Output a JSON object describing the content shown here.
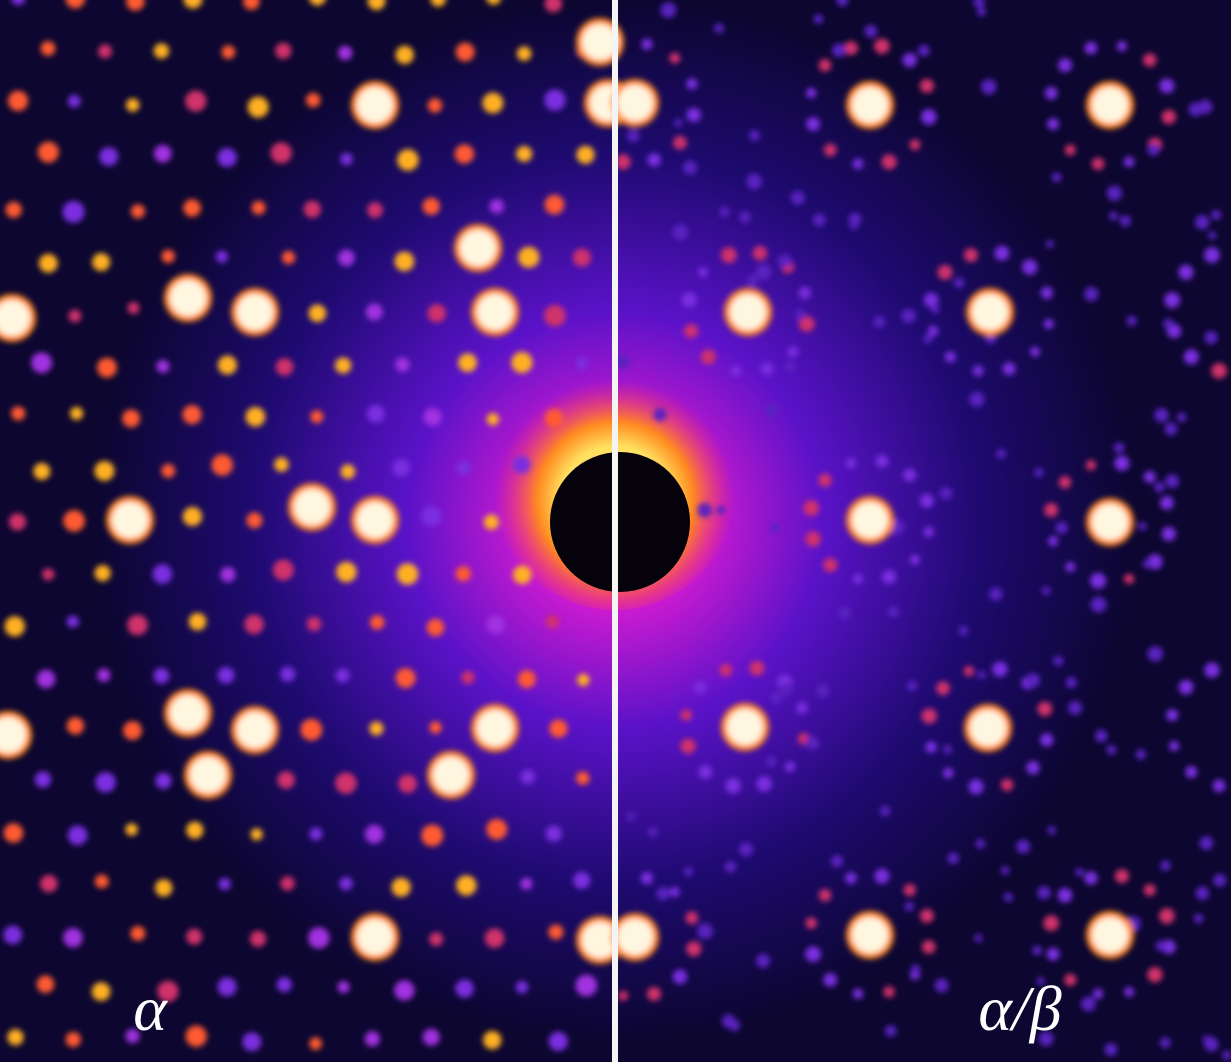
{
  "labels": {
    "left": "α",
    "right": "α/β"
  }
}
